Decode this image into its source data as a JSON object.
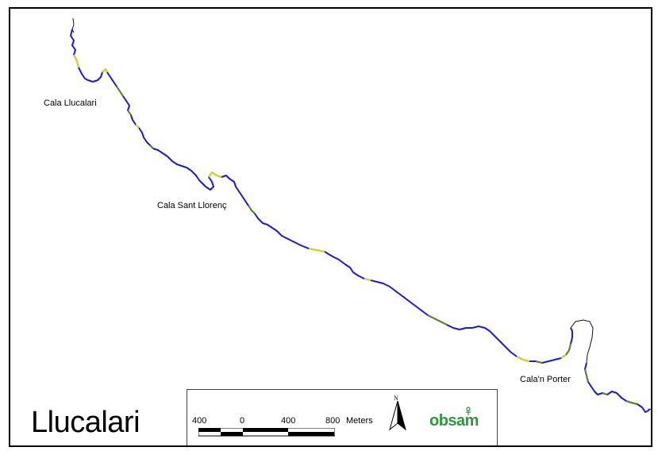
{
  "map": {
    "title": "Llucalari",
    "places": [
      {
        "name": "Cala Llucalari"
      },
      {
        "name": "Cala Sant Llorenç"
      },
      {
        "name": "Cala'n Porter"
      }
    ],
    "coast_colors": {
      "primary": "#1a1ad6",
      "secondary": "#d8d81a",
      "tertiary": "#5a8c1a",
      "outline": "#111111"
    }
  },
  "scale_bar": {
    "labels": [
      "400",
      "0",
      "400",
      "800"
    ],
    "units": "Meters"
  },
  "north_arrow": {
    "letter": "N",
    "icon": "north-arrow-icon"
  },
  "logo": {
    "text": "obsam",
    "color": "#2a9a3a"
  }
}
